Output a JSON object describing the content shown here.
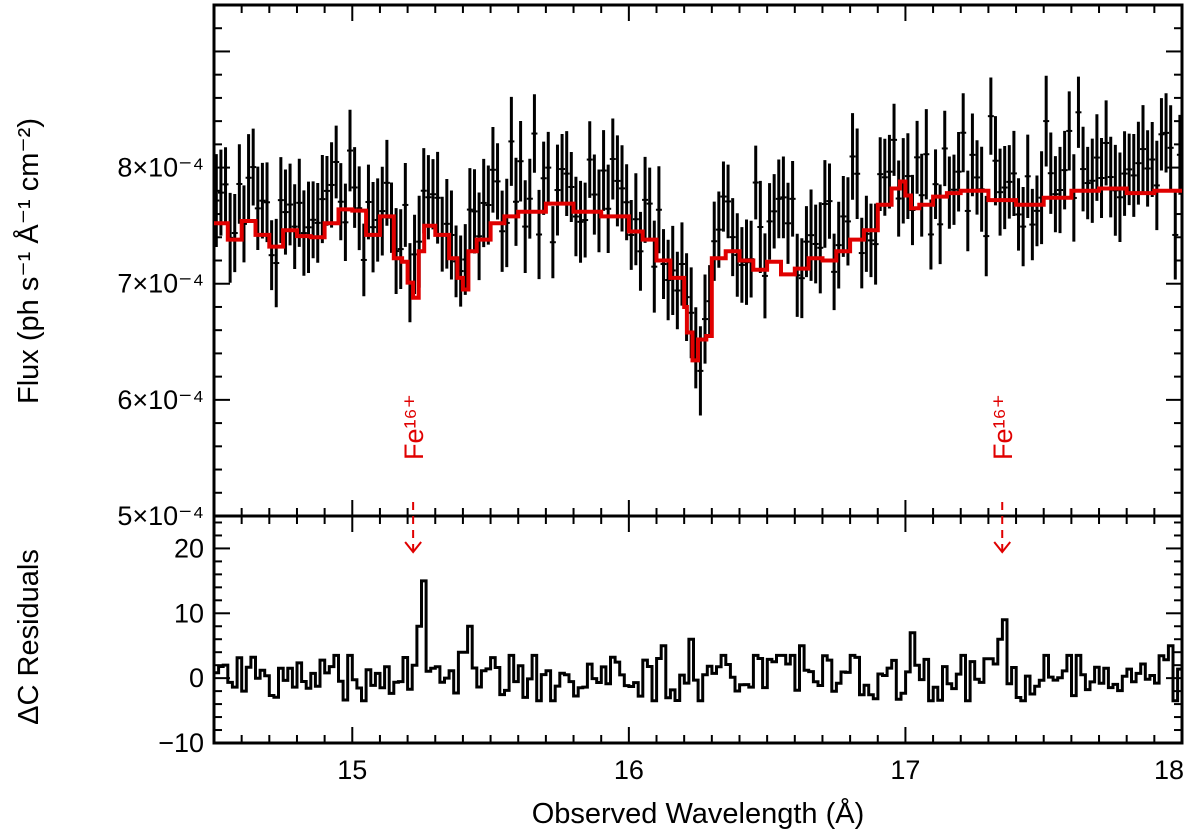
{
  "chart_data": [
    {
      "panel": "top",
      "type": "line",
      "ylabel": "Flux (ph s⁻¹ Å⁻¹ cm⁻²)",
      "xlim": [
        14.5,
        18
      ],
      "ylim": [
        0.0005,
        0.00094
      ],
      "yticks": [
        {
          "value": 0.0005,
          "label": "5×10⁻⁴"
        },
        {
          "value": 0.0006,
          "label": "6×10⁻⁴"
        },
        {
          "value": 0.0007,
          "label": "7×10⁻⁴"
        },
        {
          "value": 0.0008,
          "label": "8×10⁻⁴"
        }
      ],
      "series": [
        {
          "name": "data",
          "style": "errorbar",
          "color": "#000000"
        },
        {
          "name": "model",
          "style": "step",
          "color": "#e00000",
          "x": [
            14.5,
            14.55,
            14.6,
            14.65,
            14.7,
            14.75,
            14.8,
            14.85,
            14.9,
            14.95,
            15.0,
            15.05,
            15.1,
            15.15,
            15.18,
            15.2,
            15.22,
            15.24,
            15.26,
            15.3,
            15.35,
            15.38,
            15.4,
            15.42,
            15.45,
            15.5,
            15.55,
            15.6,
            15.7,
            15.8,
            15.9,
            16.0,
            16.05,
            16.1,
            16.15,
            16.2,
            16.21,
            16.23,
            16.25,
            16.28,
            16.3,
            16.35,
            16.4,
            16.45,
            16.5,
            16.55,
            16.6,
            16.65,
            16.7,
            16.75,
            16.8,
            16.85,
            16.9,
            16.95,
            16.98,
            17.0,
            17.02,
            17.05,
            17.1,
            17.15,
            17.2,
            17.3,
            17.4,
            17.5,
            17.6,
            17.7,
            17.8,
            17.9,
            18.0
          ],
          "y": [
            0.000752,
            0.000738,
            0.000754,
            0.000742,
            0.000732,
            0.000746,
            0.000741,
            0.00074,
            0.000752,
            0.000764,
            0.000763,
            0.000742,
            0.000758,
            0.000722,
            0.000719,
            0.000701,
            0.000688,
            0.000728,
            0.00075,
            0.000742,
            0.000722,
            0.000705,
            0.000695,
            0.000728,
            0.000738,
            0.000752,
            0.000758,
            0.000762,
            0.000769,
            0.000762,
            0.000758,
            0.000745,
            0.000738,
            0.00072,
            0.000705,
            0.00068,
            0.000658,
            0.000634,
            0.000652,
            0.000655,
            0.000722,
            0.000728,
            0.00072,
            0.000712,
            0.000719,
            0.000708,
            0.000713,
            0.000722,
            0.00072,
            0.000728,
            0.000738,
            0.000746,
            0.000768,
            0.000782,
            0.000788,
            0.000776,
            0.000765,
            0.000768,
            0.000775,
            0.000778,
            0.00078,
            0.000772,
            0.000768,
            0.000774,
            0.00078,
            0.000782,
            0.000778,
            0.00078,
            0.000778
          ]
        }
      ],
      "annotations": [
        {
          "text": "Fe¹⁶⁺",
          "x": 15.22,
          "color": "#e00000"
        },
        {
          "text": "Fe¹⁶⁺",
          "x": 17.35,
          "color": "#e00000"
        }
      ]
    },
    {
      "panel": "bottom",
      "type": "line",
      "xlabel": "Observed Wavelength (Å)",
      "ylabel": "ΔC Residuals",
      "xlim": [
        14.5,
        18
      ],
      "ylim": [
        -10,
        25
      ],
      "xticks": [
        {
          "value": 15,
          "label": "15"
        },
        {
          "value": 16,
          "label": "16"
        },
        {
          "value": 17,
          "label": "17"
        },
        {
          "value": 18,
          "label": "18"
        }
      ],
      "yticks": [
        {
          "value": -10,
          "label": "−10"
        },
        {
          "value": 0,
          "label": "0"
        },
        {
          "value": 10,
          "label": "10"
        },
        {
          "value": 20,
          "label": "20"
        }
      ],
      "series": [
        {
          "name": "residuals",
          "style": "step",
          "color": "#000000"
        }
      ]
    }
  ]
}
